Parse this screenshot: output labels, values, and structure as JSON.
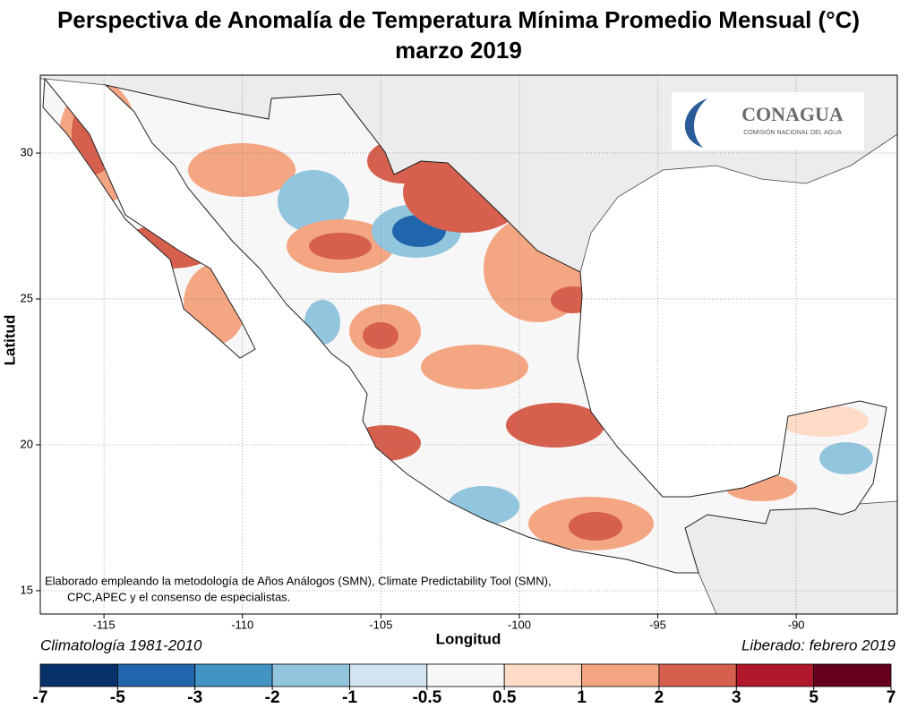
{
  "title": "Perspectiva de Anomalía de Temperatura Mínima Promedio Mensual (°C)",
  "subtitle": "marzo 2019",
  "logo": {
    "name": "CONAGUA",
    "subtitle": "COMISIÓN NACIONAL DEL AGUA"
  },
  "map": {
    "x_label": "Longitud",
    "y_label": "Latitud",
    "xlim": [
      -117.3,
      -86.35
    ],
    "ylim": [
      14.2,
      32.67
    ],
    "xticks": [
      -115,
      -110,
      -105,
      -100,
      -95,
      -90
    ],
    "yticks": [
      15,
      20,
      25,
      30
    ],
    "grid": true
  },
  "note": [
    "Elaborado empleando la metodología de Años Análogos (SMN), Climate Predictability Tool (SMN),",
    "CPC,APEC y el consenso de especialistas."
  ],
  "climatology": "Climatología 1981-2010",
  "release": "Liberado: febrero 2019",
  "colorbar": {
    "bounds": [
      -7,
      -5,
      -3,
      -2,
      -1,
      -0.5,
      0.5,
      1,
      2,
      3,
      5,
      7
    ],
    "colors": [
      "#08306b",
      "#2166ac",
      "#4393c3",
      "#92c5de",
      "#d1e5f0",
      "#f7f7f7",
      "#fddbc7",
      "#f4a582",
      "#d6604d",
      "#b2182b",
      "#67001f"
    ]
  }
}
